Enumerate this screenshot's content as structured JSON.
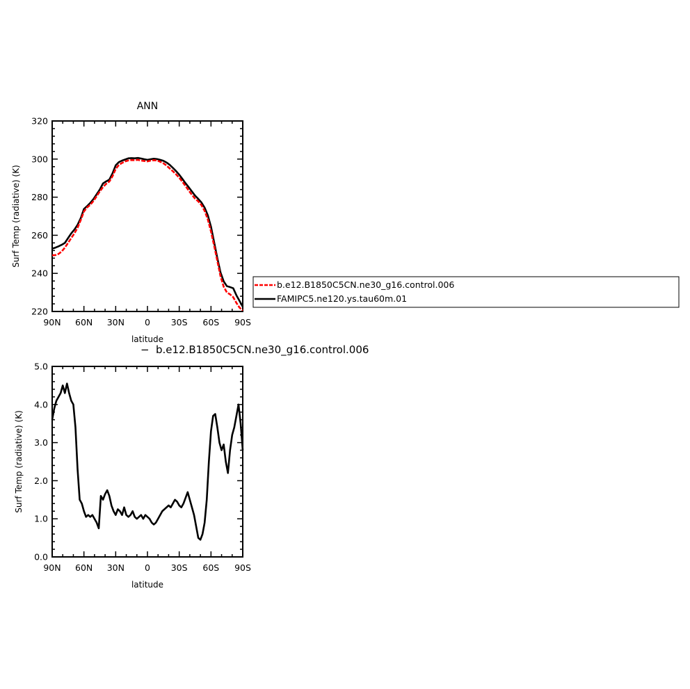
{
  "chart_data": [
    {
      "type": "line",
      "title": "ANN",
      "xlabel": "latitude",
      "ylabel": "Surf Temp (radiative) (K)",
      "xlim": [
        90,
        -90
      ],
      "ylim": [
        220,
        320
      ],
      "x_ticks": [
        90,
        60,
        30,
        0,
        -30,
        -60,
        -90
      ],
      "x_tick_labels": [
        "90N",
        "60N",
        "30N",
        "0",
        "30S",
        "60S",
        "90S"
      ],
      "y_ticks": [
        220,
        240,
        260,
        280,
        300,
        320
      ],
      "y_tick_labels": [
        "220",
        "240",
        "260",
        "280",
        "300",
        "320"
      ],
      "legend_position": "right",
      "series": [
        {
          "name": "b.e12.B1850C5CN.ne30_g16.control.006",
          "color": "#ff0000",
          "dash": "dashed",
          "x": [
            90,
            87,
            84,
            81,
            78,
            75,
            72,
            69,
            66,
            63,
            60,
            57,
            54,
            51,
            48,
            45,
            42,
            39,
            36,
            33,
            30,
            27,
            24,
            21,
            18,
            15,
            12,
            9,
            6,
            3,
            0,
            -3,
            -6,
            -9,
            -12,
            -15,
            -18,
            -21,
            -24,
            -27,
            -30,
            -33,
            -36,
            -39,
            -42,
            -45,
            -48,
            -51,
            -54,
            -57,
            -60,
            -63,
            -66,
            -69,
            -72,
            -75,
            -78,
            -81,
            -84,
            -87,
            -90
          ],
          "values": [
            249.5,
            249.6,
            250.2,
            251.5,
            253.5,
            256,
            258.5,
            261,
            264,
            268,
            272.5,
            274.6,
            276,
            278,
            280.5,
            283,
            285.3,
            287,
            288.2,
            291,
            294.8,
            296.9,
            298,
            298.8,
            299.3,
            299.5,
            299.4,
            299.6,
            299.2,
            299,
            298.8,
            299.2,
            299.4,
            299.3,
            298.6,
            297.8,
            296.6,
            295.1,
            293.6,
            292,
            290.2,
            288.1,
            285.8,
            283.5,
            281.2,
            279.2,
            277.8,
            275.8,
            272.8,
            268.3,
            262,
            254.5,
            246.5,
            238.5,
            233,
            230,
            229,
            227.5,
            224.5,
            222,
            220.5
          ]
        },
        {
          "name": "FAMIPC5.ne120.ys.tau60m.01",
          "color": "#000000",
          "dash": "solid",
          "x": [
            90,
            87,
            84,
            81,
            78,
            75,
            72,
            69,
            66,
            63,
            60,
            57,
            54,
            51,
            48,
            45,
            42,
            39,
            36,
            33,
            30,
            27,
            24,
            21,
            18,
            15,
            12,
            9,
            6,
            3,
            0,
            -3,
            -6,
            -9,
            -12,
            -15,
            -18,
            -21,
            -24,
            -27,
            -30,
            -33,
            -36,
            -39,
            -42,
            -45,
            -48,
            -51,
            -54,
            -57,
            -60,
            -63,
            -66,
            -69,
            -72,
            -75,
            -78,
            -81,
            -84,
            -87,
            -90
          ],
          "values": [
            253,
            253.5,
            254.2,
            255,
            256,
            258.5,
            261,
            263,
            265.5,
            269,
            273.8,
            275.3,
            277,
            279,
            281.5,
            284,
            287.2,
            288.3,
            289.2,
            292.5,
            296.7,
            298.4,
            299.2,
            299.8,
            300.4,
            300.5,
            300.4,
            300.6,
            300.3,
            299.9,
            299.6,
            299.9,
            300.2,
            300,
            299.6,
            299.1,
            298.2,
            297,
            295.4,
            293.7,
            291.8,
            289.6,
            287.3,
            285.2,
            283,
            280.8,
            279.1,
            277.2,
            274.5,
            270.5,
            264.5,
            256.3,
            248,
            240.5,
            235.8,
            233.3,
            232.8,
            232.2,
            228.5,
            225.5,
            222.5
          ]
        }
      ]
    },
    {
      "type": "line",
      "title": "b.e12.B1850C5CN.ne30_g16.control.006",
      "title_prefix": "−",
      "xlabel": "latitude",
      "ylabel": "Surf Temp (radiative) (K)",
      "xlim": [
        90,
        -90
      ],
      "ylim": [
        0,
        5
      ],
      "x_ticks": [
        90,
        60,
        30,
        0,
        -30,
        -60,
        -90
      ],
      "x_tick_labels": [
        "90N",
        "60N",
        "30N",
        "0",
        "30S",
        "60S",
        "90S"
      ],
      "y_ticks": [
        0,
        1,
        2,
        3,
        4,
        5
      ],
      "y_tick_labels": [
        "0.0",
        "1.0",
        "2.0",
        "3.0",
        "4.0",
        "5.0"
      ],
      "series": [
        {
          "color": "#000000",
          "dash": "solid",
          "x": [
            90,
            88,
            86,
            84,
            82,
            80,
            78,
            76,
            74,
            72,
            70,
            68,
            66,
            64,
            62,
            60,
            58,
            56,
            54,
            52,
            50,
            48,
            46,
            44,
            42,
            40,
            38,
            36,
            34,
            32,
            30,
            28,
            26,
            24,
            22,
            20,
            18,
            16,
            14,
            12,
            10,
            8,
            6,
            4,
            2,
            0,
            -2,
            -4,
            -6,
            -8,
            -10,
            -12,
            -14,
            -16,
            -18,
            -20,
            -22,
            -24,
            -26,
            -28,
            -30,
            -32,
            -34,
            -36,
            -38,
            -40,
            -42,
            -44,
            -46,
            -48,
            -50,
            -52,
            -54,
            -56,
            -58,
            -60,
            -62,
            -64,
            -66,
            -68,
            -70,
            -72,
            -74,
            -76,
            -78,
            -80,
            -82,
            -84,
            -86,
            -88,
            -90
          ],
          "values": [
            3.6,
            3.9,
            4.1,
            4.2,
            4.3,
            4.5,
            4.3,
            4.55,
            4.3,
            4.1,
            4.0,
            3.4,
            2.3,
            1.5,
            1.4,
            1.2,
            1.05,
            1.1,
            1.05,
            1.1,
            1.0,
            0.9,
            0.75,
            1.6,
            1.5,
            1.65,
            1.75,
            1.6,
            1.35,
            1.2,
            1.1,
            1.25,
            1.2,
            1.1,
            1.3,
            1.1,
            1.05,
            1.1,
            1.2,
            1.05,
            1.0,
            1.05,
            1.1,
            1.0,
            1.1,
            1.05,
            1.0,
            0.9,
            0.85,
            0.9,
            1.0,
            1.1,
            1.2,
            1.25,
            1.3,
            1.35,
            1.3,
            1.4,
            1.5,
            1.45,
            1.35,
            1.3,
            1.4,
            1.55,
            1.7,
            1.5,
            1.3,
            1.1,
            0.8,
            0.5,
            0.45,
            0.6,
            0.9,
            1.5,
            2.5,
            3.3,
            3.7,
            3.75,
            3.4,
            3.0,
            2.8,
            2.95,
            2.5,
            2.2,
            2.8,
            3.2,
            3.4,
            3.7,
            4.0,
            3.5,
            2.8
          ]
        }
      ]
    }
  ]
}
